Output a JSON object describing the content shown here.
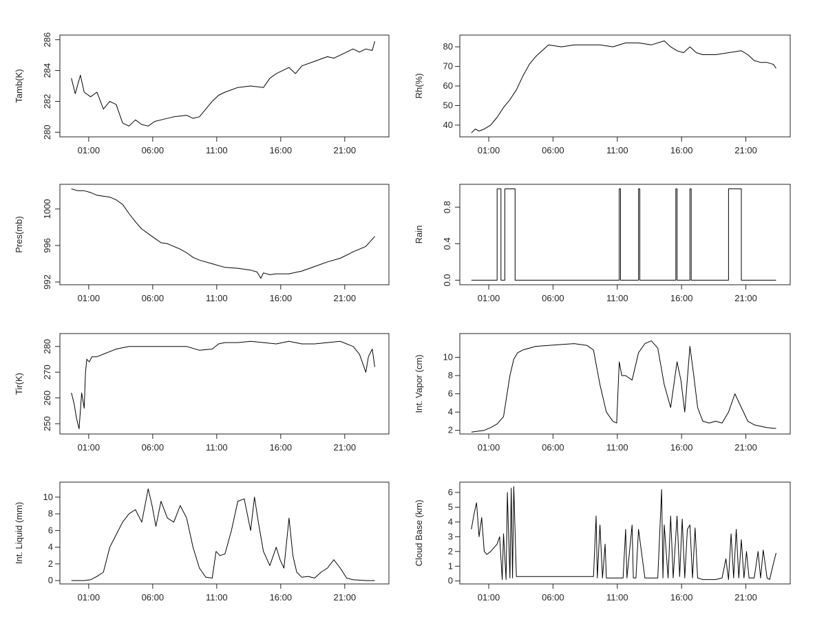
{
  "chart_data": [
    {
      "type": "line",
      "ylabel": "Tamb(K)",
      "x_ticks": [
        "01:00",
        "06:00",
        "11:00",
        "16:00",
        "21:00"
      ],
      "xlim": [
        0,
        24
      ],
      "ylim": [
        279.7,
        286.3
      ],
      "y_ticks": [
        "280",
        "282",
        "284",
        "286"
      ],
      "y_tick_values": [
        280,
        282,
        284,
        286
      ],
      "y_tick_rotate": true,
      "step": false,
      "series": [
        {
          "x": [
            0.0,
            0.3,
            0.7,
            1.0,
            1.5,
            2.0,
            2.5,
            3.0,
            3.5,
            4.0,
            4.5,
            5.0,
            5.5,
            6.0,
            6.5,
            7.0,
            8.0,
            9.0,
            9.5,
            10.0,
            10.5,
            11.0,
            11.5,
            12.0,
            13.0,
            14.0,
            15.0,
            15.5,
            16.0,
            17.0,
            17.5,
            18.0,
            19.0,
            20.0,
            20.5,
            21.0,
            21.5,
            22.0,
            22.5,
            23.0,
            23.5,
            23.7
          ],
          "y": [
            283.5,
            282.5,
            283.7,
            282.6,
            282.3,
            282.6,
            281.5,
            282.0,
            281.8,
            280.6,
            280.4,
            280.8,
            280.5,
            280.4,
            280.7,
            280.8,
            281.0,
            281.1,
            280.9,
            281.0,
            281.5,
            282.0,
            282.4,
            282.6,
            282.9,
            283.0,
            282.9,
            283.5,
            283.8,
            284.2,
            283.8,
            284.3,
            284.6,
            284.9,
            284.8,
            285.0,
            285.2,
            285.4,
            285.2,
            285.4,
            285.3,
            285.9
          ]
        }
      ]
    },
    {
      "type": "line",
      "ylabel": "Rh(%)",
      "x_ticks": [
        "01:00",
        "06:00",
        "11:00",
        "16:00",
        "21:00"
      ],
      "xlim": [
        0,
        24
      ],
      "ylim": [
        34,
        86
      ],
      "y_ticks": [
        "40",
        "50",
        "60",
        "70",
        "80"
      ],
      "y_tick_values": [
        40,
        50,
        60,
        70,
        80
      ],
      "y_tick_rotate": false,
      "step": false,
      "series": [
        {
          "x": [
            0.0,
            0.3,
            0.6,
            1.0,
            1.5,
            2.0,
            2.5,
            3.0,
            3.5,
            4.0,
            4.5,
            5.0,
            5.5,
            6.0,
            7.0,
            8.0,
            9.0,
            10.0,
            11.0,
            12.0,
            13.0,
            14.0,
            15.0,
            15.5,
            16.0,
            16.5,
            17.0,
            17.5,
            18.0,
            19.0,
            20.0,
            21.0,
            21.5,
            22.0,
            22.5,
            23.0,
            23.5,
            23.7
          ],
          "y": [
            36,
            38,
            37,
            38,
            40,
            44,
            49,
            53,
            58,
            65,
            71,
            75,
            78,
            81,
            80,
            81,
            81,
            81,
            80,
            82,
            82,
            81,
            83,
            80,
            78,
            77,
            80,
            77,
            76,
            76,
            77,
            78,
            76,
            73,
            72,
            72,
            71,
            69
          ]
        }
      ]
    },
    {
      "type": "line",
      "ylabel": "Pres(mb)",
      "x_ticks": [
        "01:00",
        "06:00",
        "11:00",
        "16:00",
        "21:00"
      ],
      "xlim": [
        0,
        24
      ],
      "ylim": [
        991.7,
        1002.7
      ],
      "y_ticks": [
        "992",
        "996",
        "1000"
      ],
      "y_tick_values": [
        992,
        996,
        1000
      ],
      "y_tick_rotate": true,
      "step": false,
      "series": [
        {
          "x": [
            0.0,
            0.5,
            1.0,
            1.5,
            2.0,
            2.5,
            3.0,
            3.5,
            4.0,
            4.5,
            5.0,
            5.5,
            6.0,
            6.5,
            7.0,
            7.5,
            8.0,
            8.5,
            9.0,
            9.5,
            10.0,
            11.0,
            12.0,
            13.0,
            14.0,
            14.5,
            14.8,
            15.0,
            15.5,
            16.0,
            17.0,
            18.0,
            19.0,
            20.0,
            21.0,
            22.0,
            23.0,
            23.7
          ],
          "y": [
            1002.2,
            1002.0,
            1002.0,
            1001.8,
            1001.5,
            1001.4,
            1001.3,
            1001.0,
            1000.5,
            999.5,
            998.6,
            997.8,
            997.3,
            996.8,
            996.3,
            996.2,
            995.9,
            995.6,
            995.2,
            994.7,
            994.4,
            994.0,
            993.6,
            993.5,
            993.3,
            993.1,
            992.4,
            993.0,
            992.8,
            992.9,
            992.9,
            993.2,
            993.7,
            994.2,
            994.6,
            995.3,
            995.9,
            997.0
          ]
        }
      ]
    },
    {
      "type": "line",
      "ylabel": "Rain",
      "x_ticks": [
        "01:00",
        "06:00",
        "11:00",
        "16:00",
        "21:00"
      ],
      "xlim": [
        0,
        24
      ],
      "ylim": [
        -0.05,
        1.05
      ],
      "y_ticks": [
        "0.0",
        "0.4",
        "0.8"
      ],
      "y_tick_values": [
        0.0,
        0.4,
        0.8
      ],
      "y_tick_rotate": true,
      "step": true,
      "series": [
        {
          "x": [
            0.0,
            2.0,
            2.0,
            2.3,
            2.3,
            2.6,
            2.6,
            3.4,
            3.4,
            11.5,
            11.5,
            11.6,
            11.6,
            13.0,
            13.0,
            13.1,
            13.1,
            15.9,
            15.9,
            16.0,
            16.0,
            17.0,
            17.0,
            17.1,
            17.1,
            20.0,
            20.0,
            21.0,
            21.0,
            23.7
          ],
          "y": [
            0,
            0,
            1,
            1,
            0,
            0,
            1,
            1,
            0,
            0,
            1,
            1,
            0,
            0,
            1,
            1,
            0,
            0,
            1,
            1,
            0,
            0,
            1,
            1,
            0,
            0,
            1,
            1,
            0,
            0
          ]
        }
      ]
    },
    {
      "type": "line",
      "ylabel": "Tir(K)",
      "x_ticks": [
        "01:00",
        "06:00",
        "11:00",
        "16:00",
        "21:00"
      ],
      "xlim": [
        0,
        24
      ],
      "ylim": [
        246,
        285
      ],
      "y_ticks": [
        "250",
        "260",
        "270",
        "280"
      ],
      "y_tick_values": [
        250,
        260,
        270,
        280
      ],
      "y_tick_rotate": true,
      "step": false,
      "series": [
        {
          "x": [
            0.0,
            0.2,
            0.4,
            0.6,
            0.8,
            1.0,
            1.1,
            1.2,
            1.4,
            1.6,
            2.0,
            2.5,
            3.0,
            3.5,
            4.0,
            4.5,
            5.0,
            6.0,
            7.0,
            8.0,
            9.0,
            10.0,
            11.0,
            11.5,
            12.0,
            13.0,
            14.0,
            15.0,
            16.0,
            17.0,
            18.0,
            19.0,
            20.0,
            21.0,
            21.5,
            22.0,
            22.5,
            23.0,
            23.2,
            23.5,
            23.7
          ],
          "y": [
            262,
            258,
            252,
            248,
            262,
            256,
            270,
            275,
            274,
            276,
            276,
            277,
            278,
            279,
            279.5,
            280,
            280,
            280,
            280,
            280,
            280,
            278.5,
            279,
            281,
            281.5,
            281.5,
            282,
            281.5,
            281,
            282,
            281,
            281,
            281.5,
            282,
            281,
            280,
            277,
            270,
            276,
            279,
            272
          ]
        }
      ]
    },
    {
      "type": "line",
      "ylabel": "Int. Vapor (cm)",
      "x_ticks": [
        "01:00",
        "06:00",
        "11:00",
        "16:00",
        "21:00"
      ],
      "xlim": [
        0,
        24
      ],
      "ylim": [
        1.6,
        12.6
      ],
      "y_ticks": [
        "2",
        "4",
        "6",
        "8",
        "10"
      ],
      "y_tick_values": [
        2,
        4,
        6,
        8,
        10
      ],
      "y_tick_rotate": false,
      "step": false,
      "series": [
        {
          "x": [
            0.0,
            1.0,
            1.5,
            2.0,
            2.5,
            3.0,
            3.3,
            3.6,
            4.0,
            5.0,
            6.0,
            7.0,
            8.0,
            9.0,
            9.5,
            10.0,
            10.5,
            11.0,
            11.3,
            11.5,
            11.7,
            12.0,
            12.5,
            13.0,
            13.5,
            14.0,
            14.5,
            15.0,
            15.5,
            16.0,
            16.3,
            16.6,
            17.0,
            17.3,
            17.6,
            18.0,
            18.5,
            19.0,
            19.5,
            20.0,
            20.5,
            21.0,
            21.5,
            22.0,
            23.0,
            23.7
          ],
          "y": [
            1.8,
            2.0,
            2.3,
            2.7,
            3.5,
            8.0,
            9.8,
            10.5,
            10.8,
            11.2,
            11.3,
            11.4,
            11.5,
            11.3,
            10.8,
            7.0,
            4.0,
            3.0,
            2.8,
            9.5,
            8.0,
            8.0,
            7.5,
            10.5,
            11.5,
            11.8,
            11.0,
            7.0,
            4.5,
            9.5,
            7.5,
            4.0,
            11.2,
            8.0,
            4.5,
            3.0,
            2.8,
            3.0,
            2.8,
            4.0,
            6.0,
            4.5,
            3.0,
            2.6,
            2.3,
            2.2
          ]
        }
      ]
    },
    {
      "type": "line",
      "ylabel": "Int. Liquid (mm)",
      "x_ticks": [
        "01:00",
        "06:00",
        "11:00",
        "16:00",
        "21:00"
      ],
      "xlim": [
        0,
        24
      ],
      "ylim": [
        -0.4,
        11.8
      ],
      "y_ticks": [
        "0",
        "2",
        "4",
        "6",
        "8",
        "10"
      ],
      "y_tick_values": [
        0,
        2,
        4,
        6,
        8,
        10
      ],
      "y_tick_rotate": false,
      "step": false,
      "series": [
        {
          "x": [
            0.0,
            1.0,
            1.5,
            2.0,
            2.5,
            3.0,
            3.5,
            4.0,
            4.5,
            5.0,
            5.5,
            6.0,
            6.3,
            6.6,
            7.0,
            7.5,
            8.0,
            8.5,
            9.0,
            9.5,
            10.0,
            10.5,
            11.0,
            11.3,
            11.6,
            12.0,
            12.5,
            13.0,
            13.5,
            14.0,
            14.3,
            14.6,
            15.0,
            15.5,
            16.0,
            16.3,
            16.6,
            17.0,
            17.3,
            17.6,
            18.0,
            18.5,
            19.0,
            19.5,
            20.0,
            20.5,
            21.0,
            21.5,
            22.0,
            23.0,
            23.7
          ],
          "y": [
            0,
            0,
            0.1,
            0.5,
            1.0,
            4.0,
            5.5,
            7.0,
            8.0,
            8.5,
            7.0,
            11.0,
            9.0,
            6.5,
            9.5,
            7.5,
            7.0,
            9.0,
            7.5,
            4.0,
            1.5,
            0.4,
            0.3,
            3.5,
            3.0,
            3.2,
            6.0,
            9.5,
            9.8,
            6.0,
            10.0,
            7.0,
            3.5,
            1.8,
            4.0,
            2.5,
            1.5,
            7.5,
            3.0,
            1.0,
            0.4,
            0.5,
            0.3,
            1.0,
            1.5,
            2.5,
            1.5,
            0.3,
            0.1,
            0,
            0
          ]
        }
      ]
    },
    {
      "type": "line",
      "ylabel": "Cloud Base (km)",
      "x_ticks": [
        "01:00",
        "06:00",
        "11:00",
        "16:00",
        "21:00"
      ],
      "xlim": [
        0,
        24
      ],
      "ylim": [
        -0.2,
        6.7
      ],
      "y_ticks": [
        "0",
        "1",
        "2",
        "3",
        "4",
        "5",
        "6"
      ],
      "y_tick_values": [
        0,
        1,
        2,
        3,
        4,
        5,
        6
      ],
      "y_tick_rotate": false,
      "step": false,
      "series": [
        {
          "x": [
            0.0,
            0.2,
            0.4,
            0.6,
            0.8,
            1.0,
            1.2,
            1.5,
            2.0,
            2.2,
            2.4,
            2.5,
            2.7,
            2.8,
            3.0,
            3.1,
            3.2,
            3.3,
            3.5,
            4.0,
            5.0,
            6.0,
            7.0,
            8.0,
            9.0,
            9.5,
            9.7,
            9.8,
            10.0,
            10.2,
            10.4,
            10.5,
            11.0,
            11.5,
            11.8,
            12.0,
            12.1,
            12.5,
            12.6,
            12.8,
            13.0,
            13.5,
            14.0,
            14.5,
            14.8,
            14.9,
            15.0,
            15.3,
            15.5,
            15.7,
            16.0,
            16.2,
            16.4,
            16.6,
            16.8,
            17.0,
            17.2,
            17.4,
            17.6,
            18.0,
            19.0,
            19.5,
            19.8,
            20.0,
            20.2,
            20.4,
            20.6,
            20.8,
            21.0,
            21.2,
            21.4,
            21.6,
            22.0,
            22.3,
            22.5,
            22.7,
            23.0,
            23.2,
            23.5,
            23.7
          ],
          "y": [
            3.5,
            4.5,
            5.3,
            3.0,
            4.3,
            2.0,
            1.8,
            2.0,
            2.5,
            3.0,
            0.1,
            3.2,
            0.1,
            6.0,
            0.2,
            6.3,
            0.2,
            6.4,
            0.3,
            0.3,
            0.3,
            0.3,
            0.3,
            0.3,
            0.3,
            0.3,
            4.4,
            0.2,
            3.8,
            0.2,
            2.5,
            0.2,
            0.2,
            0.2,
            0.2,
            3.5,
            0.2,
            3.8,
            0.2,
            0.2,
            3.5,
            0.2,
            0.2,
            0.2,
            6.2,
            0.2,
            3.8,
            0.2,
            4.4,
            0.2,
            4.4,
            0.3,
            4.2,
            0.2,
            3.5,
            3.8,
            0.2,
            3.6,
            0.2,
            0.1,
            0.1,
            0.2,
            1.5,
            0.1,
            3.2,
            0.2,
            3.5,
            0.2,
            2.8,
            0.2,
            2.0,
            0.2,
            0.2,
            2.0,
            0.2,
            2.1,
            0.2,
            0.1,
            1.2,
            1.9
          ]
        }
      ]
    }
  ]
}
